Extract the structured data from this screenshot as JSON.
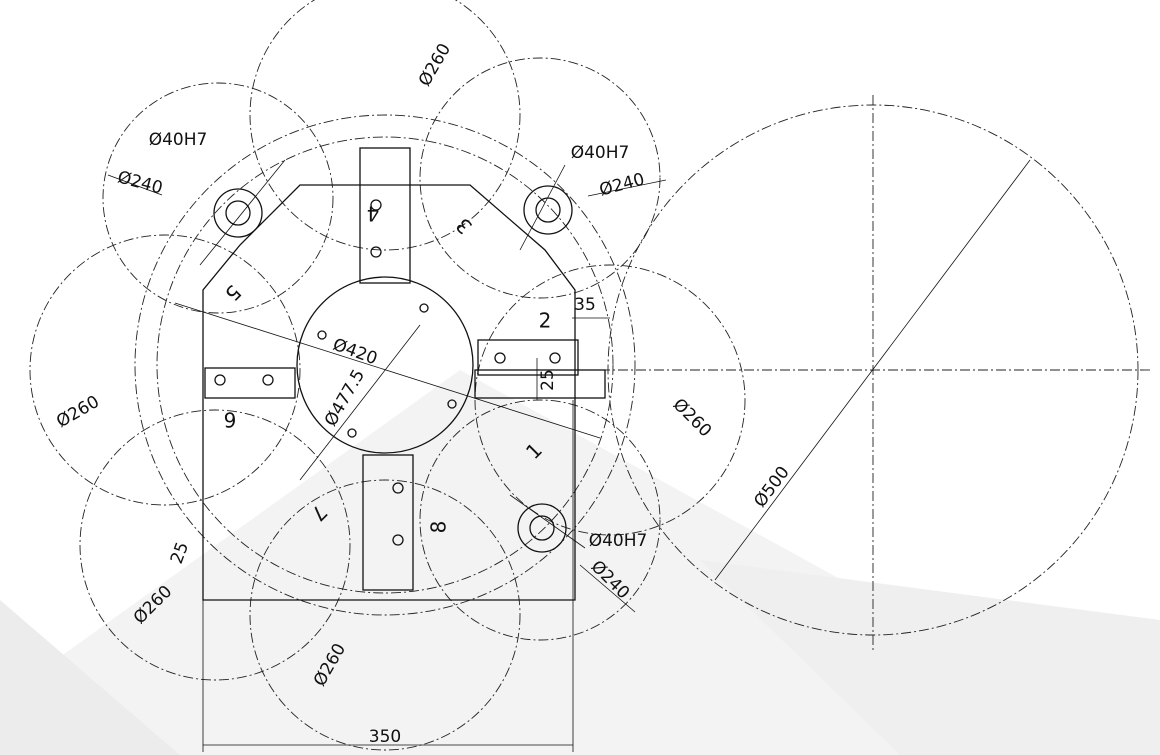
{
  "dimensions": [
    "Ø260",
    "Ø40H7",
    "Ø240",
    "Ø40H7",
    "Ø240",
    "Ø260",
    "Ø420",
    "Ø477.5",
    "35",
    "25",
    "Ø260",
    "Ø40H7",
    "Ø240",
    "Ø500",
    "25",
    "Ø260",
    "Ø260",
    "350"
  ],
  "stations": [
    "1",
    "2",
    "3",
    "4",
    "5",
    "6",
    "7",
    "8"
  ]
}
